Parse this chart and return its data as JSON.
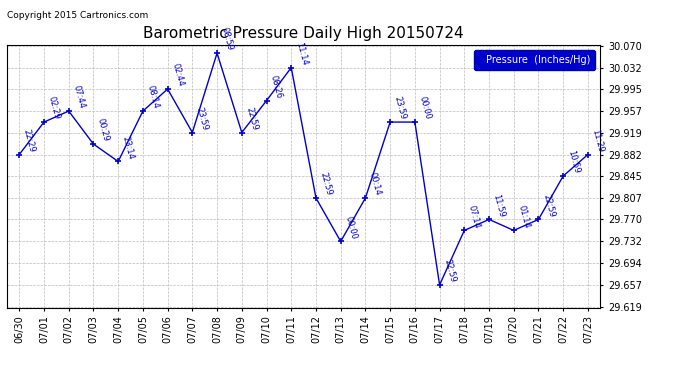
{
  "title": "Barometric Pressure Daily High 20150724",
  "copyright": "Copyright 2015 Cartronics.com",
  "ylabel": "Pressure  (Inches/Hg)",
  "ylim": [
    29.619,
    30.07
  ],
  "yticks": [
    29.619,
    29.657,
    29.694,
    29.732,
    29.77,
    29.807,
    29.845,
    29.882,
    29.919,
    29.957,
    29.995,
    30.032,
    30.07
  ],
  "dates": [
    "06/30",
    "07/01",
    "07/02",
    "07/03",
    "07/04",
    "07/05",
    "07/06",
    "07/07",
    "07/08",
    "07/09",
    "07/10",
    "07/11",
    "07/12",
    "07/13",
    "07/14",
    "07/15",
    "07/16",
    "07/17",
    "07/18",
    "07/19",
    "07/20",
    "07/21",
    "07/22",
    "07/23"
  ],
  "values": [
    29.882,
    29.938,
    29.957,
    29.9,
    29.87,
    29.957,
    29.995,
    29.92,
    30.057,
    29.92,
    29.975,
    30.032,
    29.807,
    29.732,
    29.807,
    29.938,
    29.938,
    29.657,
    29.751,
    29.77,
    29.751,
    29.77,
    29.845,
    29.882
  ],
  "time_labels": [
    "22:29",
    "02:29",
    "07:44",
    "00:29",
    "23:14",
    "08:14",
    "02:44",
    "23:59",
    "08:59",
    "22:59",
    "08:26",
    "11:14",
    "22:59",
    "00:00",
    "00:14",
    "23:59",
    "00:00",
    "22:59",
    "07:14",
    "11:59",
    "01:14",
    "22:59",
    "10:59",
    "11:29"
  ],
  "line_color": "#0000cc",
  "marker_color": "#0000cc",
  "bg_color": "#ffffff",
  "grid_color": "#bbbbbb",
  "legend_bg": "#0000cc",
  "legend_text_color": "#ffffff",
  "title_fontsize": 11,
  "tick_fontsize": 7,
  "annot_fontsize": 6
}
